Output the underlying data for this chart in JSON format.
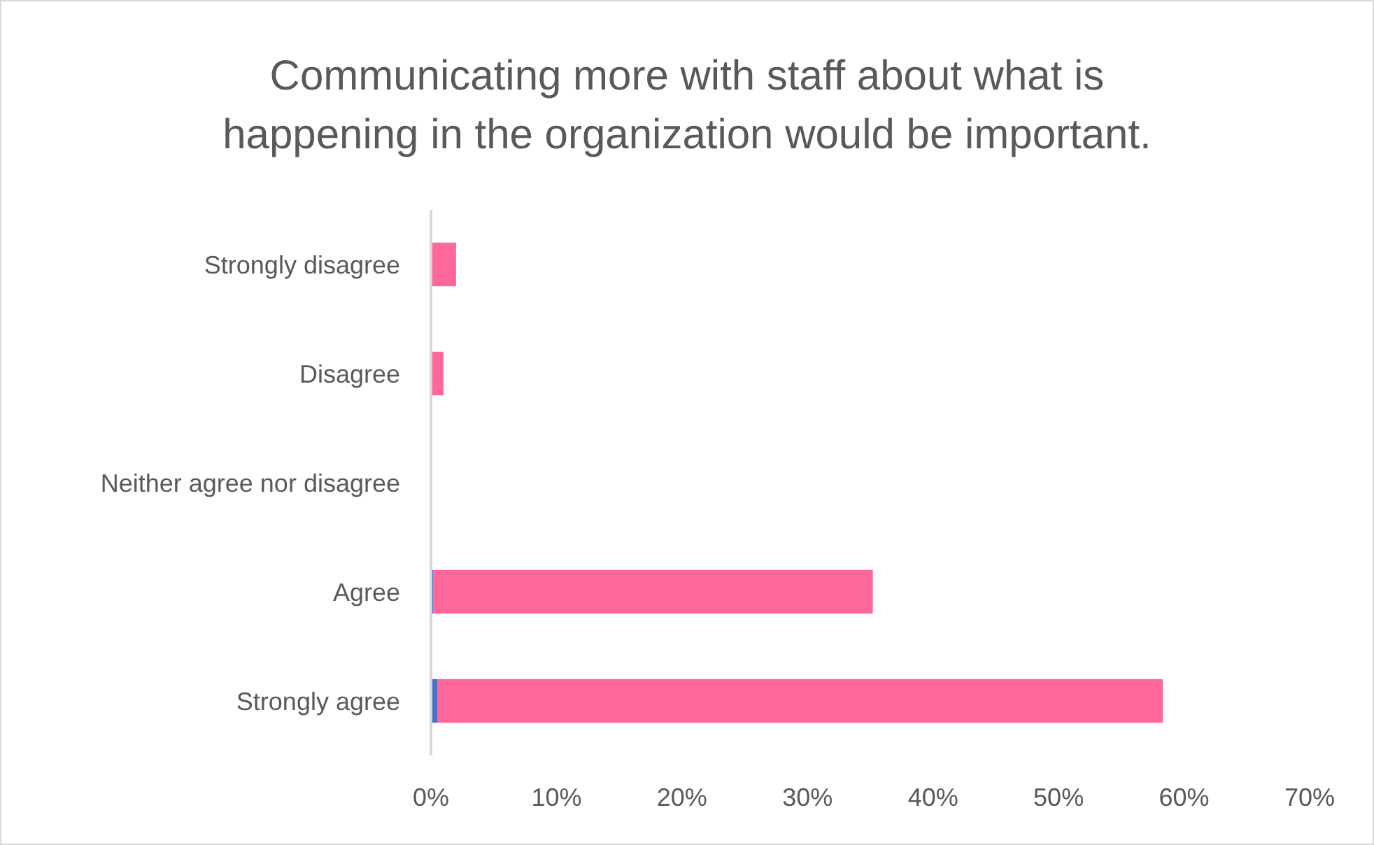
{
  "chart_data": {
    "type": "bar",
    "orientation": "horizontal",
    "stacked": true,
    "title": "Communicating more with staff about what is happening in the organization would be important.",
    "categories": [
      "Strongly disagree",
      "Disagree",
      "Neither agree nor disagree",
      "Agree",
      "Strongly agree"
    ],
    "series": [
      {
        "color": "#4472c4",
        "values": [
          0,
          0,
          0,
          0.2,
          0.5
        ]
      },
      {
        "color": "#ff6699",
        "values": [
          2.0,
          1.0,
          0,
          35.0,
          57.8
        ]
      }
    ],
    "xlim": [
      0,
      70
    ],
    "xticks": [
      {
        "value": 0,
        "label": "0%"
      },
      {
        "value": 10,
        "label": "10%"
      },
      {
        "value": 20,
        "label": "20%"
      },
      {
        "value": 30,
        "label": "30%"
      },
      {
        "value": 40,
        "label": "40%"
      },
      {
        "value": 50,
        "label": "50%"
      },
      {
        "value": 60,
        "label": "60%"
      },
      {
        "value": 70,
        "label": "70%"
      }
    ],
    "grid": false
  }
}
